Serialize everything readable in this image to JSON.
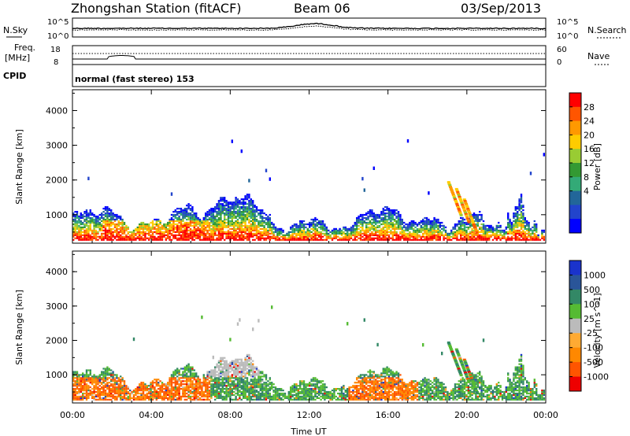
{
  "header": {
    "title": "Zhongshan Station (fitACF)",
    "beam": "Beam 06",
    "date": "03/Sep/2013"
  },
  "panels": {
    "nsky": {
      "label": "N.Sky",
      "right_label": "N.Search",
      "ticks_left": [
        "10^5",
        "10^0"
      ],
      "ticks_right": [
        "10^5",
        "10^0"
      ]
    },
    "freq": {
      "label": "Freq.",
      "unit": "[MHz]",
      "ticks_left": [
        "18",
        "8"
      ],
      "ticks_right": [
        "60",
        "0"
      ],
      "right_label": "Nave"
    },
    "cpid": {
      "label": "CPID",
      "text": "normal (fast stereo) 153"
    }
  },
  "chart_data": [
    {
      "type": "heatmap",
      "name": "power",
      "ylabel": "Slant Range [km]",
      "xlabel": "Time UT",
      "ylim": [
        180,
        4600
      ],
      "xlim_hours": [
        0,
        24
      ],
      "yticks": [
        "1000",
        "2000",
        "3000",
        "4000"
      ],
      "xticks": [
        "00:00",
        "04:00",
        "08:00",
        "12:00",
        "16:00",
        "20:00",
        "00:00"
      ],
      "colorbar": {
        "label": "Power [dB]",
        "ticks": [
          "28",
          "24",
          "20",
          "16",
          "12",
          "8",
          "4"
        ],
        "colors": [
          "#ff0000",
          "#ff5500",
          "#ff9900",
          "#ffcc00",
          "#99cc33",
          "#339933",
          "#33aa77",
          "#226699",
          "#2244cc",
          "#0000ff"
        ]
      }
    },
    {
      "type": "heatmap",
      "name": "velocity",
      "ylabel": "Slant Range [km]",
      "xlabel": "Time UT",
      "ylim": [
        180,
        4600
      ],
      "xlim_hours": [
        0,
        24
      ],
      "yticks": [
        "1000",
        "2000",
        "3000",
        "4000"
      ],
      "xticks": [
        "00:00",
        "04:00",
        "08:00",
        "12:00",
        "16:00",
        "20:00",
        "00:00"
      ],
      "colorbar": {
        "label": "Velocity [m s^-1]",
        "ticks": [
          "1000",
          "500",
          "100",
          "25",
          "-25",
          "-100",
          "-500",
          "-1000"
        ],
        "colors": [
          "#1a33cc",
          "#2a5599",
          "#338866",
          "#55bb33",
          "#bbbbbb",
          "#ffaa33",
          "#ff8800",
          "#ff5500",
          "#ee0000"
        ]
      }
    }
  ]
}
